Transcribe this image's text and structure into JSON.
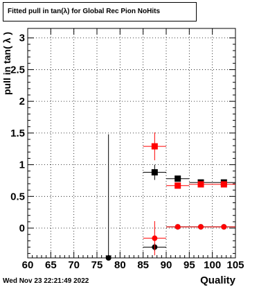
{
  "chart_data": {
    "type": "scatter",
    "title": "Fitted pull in tan(λ) for Global Rec Pion NoHits",
    "xlabel": "Quality",
    "ylabel": "pull in tan( λ )",
    "xlim": [
      60,
      105
    ],
    "ylim": [
      -0.47,
      3.15
    ],
    "x_ticks": [
      "60",
      "65",
      "70",
      "75",
      "80",
      "85",
      "90",
      "95",
      "100",
      "105"
    ],
    "y_ticks": [
      "0",
      "0.5",
      "1",
      "1.5",
      "2",
      "2.5",
      "3"
    ],
    "y_tick_values": [
      0,
      0.5,
      1,
      1.5,
      2,
      2.5,
      3
    ],
    "x_tick_values": [
      60,
      65,
      70,
      75,
      80,
      85,
      90,
      95,
      100,
      105
    ],
    "grid": true,
    "series": [
      {
        "marker": "square",
        "color": "#000000",
        "points": [
          {
            "x": 87.5,
            "y": 0.88,
            "xerr": 2.5,
            "yerr_low": 0.12,
            "yerr_high": 0.12
          },
          {
            "x": 92.5,
            "y": 0.78,
            "xerr": 2.5,
            "yerr_low": 0.04,
            "yerr_high": 0.04
          },
          {
            "x": 97.5,
            "y": 0.72,
            "xerr": 2.5,
            "yerr_low": 0.02,
            "yerr_high": 0.02
          },
          {
            "x": 102.5,
            "y": 0.72,
            "xerr": 2.5,
            "yerr_low": 0.02,
            "yerr_high": 0.02
          }
        ]
      },
      {
        "marker": "square",
        "color": "#ff0000",
        "points": [
          {
            "x": 87.5,
            "y": 1.29,
            "xerr": 2.5,
            "yerr_low": 0.22,
            "yerr_high": 0.22
          },
          {
            "x": 92.5,
            "y": 0.67,
            "xerr": 2.5,
            "yerr_low": 0.04,
            "yerr_high": 0.04
          },
          {
            "x": 97.5,
            "y": 0.69,
            "xerr": 2.5,
            "yerr_low": 0.02,
            "yerr_high": 0.02
          },
          {
            "x": 102.5,
            "y": 0.69,
            "xerr": 2.5,
            "yerr_low": 0.02,
            "yerr_high": 0.02
          }
        ]
      },
      {
        "marker": "circle",
        "color": "#000000",
        "points": [
          {
            "x": 77.5,
            "y": -0.47,
            "xerr": 0,
            "yerr_low": 0,
            "yerr_high": 1.95
          },
          {
            "x": 87.5,
            "y": -0.3,
            "xerr": 2.5,
            "yerr_low": 0.06,
            "yerr_high": 0.06
          },
          {
            "x": 92.5,
            "y": 0.02,
            "xerr": 2.5,
            "yerr_low": 0.02,
            "yerr_high": 0.02
          },
          {
            "x": 97.5,
            "y": 0.02,
            "xerr": 2.5,
            "yerr_low": 0.01,
            "yerr_high": 0.01
          },
          {
            "x": 102.5,
            "y": 0.02,
            "xerr": 2.5,
            "yerr_low": 0.01,
            "yerr_high": 0.01
          }
        ]
      },
      {
        "marker": "circle",
        "color": "#ff0000",
        "points": [
          {
            "x": 87.5,
            "y": -0.16,
            "xerr": 2.5,
            "yerr_low": 0.27,
            "yerr_high": 0.27
          },
          {
            "x": 92.5,
            "y": 0.02,
            "xerr": 2.5,
            "yerr_low": 0.02,
            "yerr_high": 0.02
          },
          {
            "x": 97.5,
            "y": 0.02,
            "xerr": 2.5,
            "yerr_low": 0.01,
            "yerr_high": 0.01
          },
          {
            "x": 102.5,
            "y": 0.02,
            "xerr": 2.5,
            "yerr_low": 0.01,
            "yerr_high": 0.01
          }
        ]
      }
    ]
  },
  "footer": {
    "timestamp": "Wed Nov 23 22:21:49 2022"
  }
}
